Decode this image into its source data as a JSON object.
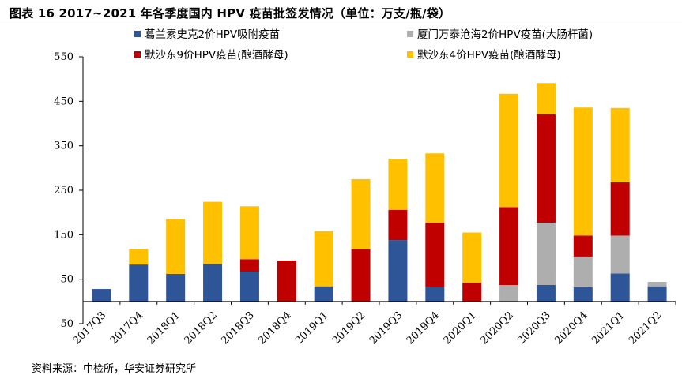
{
  "title": "图表 16 2017~2021 年各季度国内 HPV 疫苗批签发情况（单位：万支/瓶/袋）",
  "source": "资料来源：中检所，华安证券研究所",
  "colors": {
    "wotai_2": "#2E5597",
    "xiamen_2": "#AEAEAE",
    "msd_9": "#C00000",
    "msd_4": "#FFC000"
  },
  "chart_data": {
    "type": "bar",
    "stacked": true,
    "categories": [
      "2017Q3",
      "2017Q4",
      "2018Q1",
      "2018Q2",
      "2018Q3",
      "2018Q4",
      "2019Q1",
      "2019Q2",
      "2019Q3",
      "2019Q4",
      "2020Q1",
      "2020Q2",
      "2020Q3",
      "2020Q4",
      "2021Q1",
      "2021Q2"
    ],
    "series": [
      {
        "name": "葛兰素史克2价HPV吸附疫苗",
        "color": "#2E5597",
        "values": [
          28,
          83,
          62,
          84,
          67,
          0,
          34,
          0,
          138,
          32,
          0,
          0,
          37,
          32,
          63,
          34
        ]
      },
      {
        "name": "厦门万泰沧海2价HPV疫苗(大肠杆菌)",
        "color": "#AEAEAE",
        "values": [
          0,
          0,
          0,
          0,
          0,
          0,
          0,
          0,
          0,
          0,
          0,
          37,
          140,
          69,
          85,
          10
        ]
      },
      {
        "name": "默沙东9价HPV疫苗(酿酒酵母)",
        "color": "#C00000",
        "values": [
          0,
          0,
          0,
          0,
          28,
          92,
          0,
          117,
          68,
          145,
          42,
          175,
          244,
          47,
          120,
          0
        ]
      },
      {
        "name": "默沙东4价HPV疫苗(酿酒酵母)",
        "color": "#FFC000",
        "values": [
          0,
          35,
          123,
          140,
          119,
          0,
          124,
          158,
          115,
          156,
          113,
          255,
          70,
          288,
          167,
          0
        ]
      }
    ],
    "ylim": [
      -50,
      550
    ],
    "yticks": [
      -50,
      50,
      150,
      250,
      350,
      450,
      550
    ],
    "legend_position": "top",
    "grid": false
  }
}
